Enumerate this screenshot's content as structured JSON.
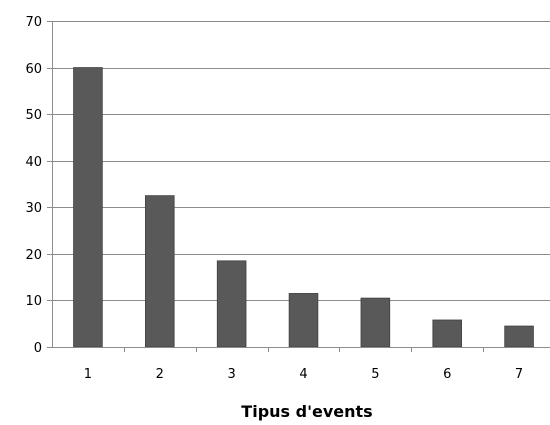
{
  "chart_data": {
    "type": "bar",
    "title": "",
    "xlabel": "Tipus d'events",
    "ylabel": "",
    "categories": [
      "1",
      "2",
      "3",
      "4",
      "5",
      "6",
      "7"
    ],
    "values": [
      60,
      32.5,
      18.5,
      11.5,
      10.5,
      5.8,
      4.5
    ],
    "ylim": [
      0,
      70
    ],
    "yticks": [
      0,
      10,
      20,
      30,
      40,
      50,
      60,
      70
    ],
    "grid": true,
    "legend": "none",
    "colors": {
      "bar": "#595959",
      "bar_edge": "#404040",
      "grid": "#8c8c8c",
      "axis": "#8c8c8c"
    }
  }
}
